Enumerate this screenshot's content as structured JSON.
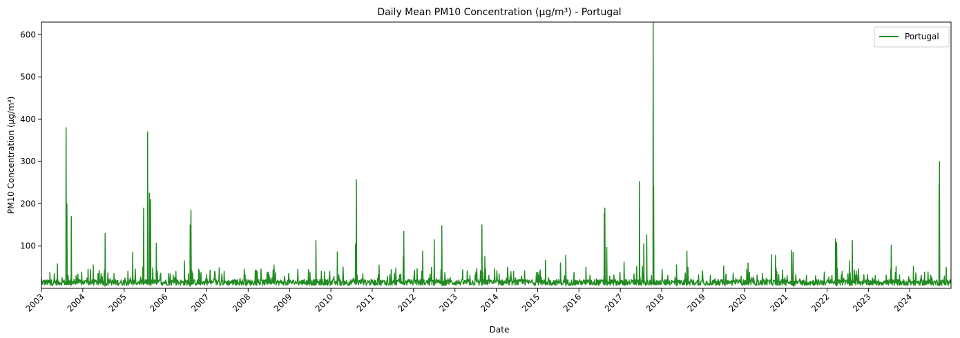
{
  "chart_data": {
    "type": "line",
    "title": "Daily Mean PM10 Concentration (µg/m³) - Portugal",
    "xlabel": "Date",
    "ylabel": "PM10 Concentration (µg/m³)",
    "xlim": [
      "2003-01-01",
      "2024-12-31"
    ],
    "ylim": [
      0,
      630
    ],
    "x_ticks": [
      "2003",
      "2004",
      "2005",
      "2006",
      "2007",
      "2008",
      "2009",
      "2010",
      "2011",
      "2012",
      "2013",
      "2014",
      "2015",
      "2016",
      "2017",
      "2018",
      "2019",
      "2020",
      "2021",
      "2022",
      "2023",
      "2024"
    ],
    "y_ticks": [
      100,
      200,
      300,
      400,
      500,
      600
    ],
    "grid": false,
    "legend": {
      "position": "top-right",
      "entries": [
        "Portugal"
      ]
    },
    "series": [
      {
        "name": "Portugal",
        "color": "#228B22",
        "baseline_range": [
          5,
          45
        ],
        "points": [
          [
            "2003-01-01",
            22
          ],
          [
            "2003-03-15",
            35
          ],
          [
            "2003-05-20",
            58
          ],
          [
            "2003-07-01",
            25
          ],
          [
            "2003-08-05",
            380
          ],
          [
            "2003-08-12",
            200
          ],
          [
            "2003-09-20",
            170
          ],
          [
            "2003-11-01",
            30
          ],
          [
            "2004-02-15",
            45
          ],
          [
            "2004-04-01",
            55
          ],
          [
            "2004-07-15",
            130
          ],
          [
            "2004-10-01",
            35
          ],
          [
            "2005-02-01",
            40
          ],
          [
            "2005-03-15",
            85
          ],
          [
            "2005-06-20",
            190
          ],
          [
            "2005-07-25",
            370
          ],
          [
            "2005-08-10",
            225
          ],
          [
            "2005-08-20",
            210
          ],
          [
            "2005-10-10",
            107
          ],
          [
            "2006-04-01",
            40
          ],
          [
            "2006-06-15",
            65
          ],
          [
            "2006-08-05",
            150
          ],
          [
            "2006-08-12",
            185
          ],
          [
            "2006-10-20",
            45
          ],
          [
            "2007-06-01",
            40
          ],
          [
            "2008-08-15",
            55
          ],
          [
            "2009-08-20",
            113
          ],
          [
            "2010-02-25",
            86
          ],
          [
            "2010-08-05",
            105
          ],
          [
            "2010-08-12",
            257
          ],
          [
            "2011-03-01",
            55
          ],
          [
            "2011-09-30",
            75
          ],
          [
            "2011-10-05",
            135
          ],
          [
            "2012-03-20",
            88
          ],
          [
            "2012-06-30",
            115
          ],
          [
            "2012-09-05",
            148
          ],
          [
            "2013-08-25",
            150
          ],
          [
            "2013-09-20",
            75
          ],
          [
            "2014-06-01",
            40
          ],
          [
            "2015-03-10",
            66
          ],
          [
            "2015-07-20",
            60
          ],
          [
            "2015-09-05",
            78
          ],
          [
            "2016-03-01",
            50
          ],
          [
            "2016-08-10",
            178
          ],
          [
            "2016-08-15",
            190
          ],
          [
            "2016-09-01",
            97
          ],
          [
            "2017-02-01",
            62
          ],
          [
            "2017-06-17",
            253
          ],
          [
            "2017-07-25",
            105
          ],
          [
            "2017-08-20",
            127
          ],
          [
            "2017-10-16",
            630
          ],
          [
            "2017-10-20",
            242
          ],
          [
            "2018-05-10",
            55
          ],
          [
            "2018-08-10",
            88
          ],
          [
            "2019-07-01",
            53
          ],
          [
            "2020-02-01",
            60
          ],
          [
            "2020-08-25",
            80
          ],
          [
            "2020-10-01",
            78
          ],
          [
            "2021-02-20",
            90
          ],
          [
            "2021-03-05",
            85
          ],
          [
            "2022-03-15",
            117
          ],
          [
            "2022-03-25",
            108
          ],
          [
            "2022-07-15",
            65
          ],
          [
            "2022-08-10",
            113
          ],
          [
            "2023-07-20",
            102
          ],
          [
            "2024-02-01",
            52
          ],
          [
            "2024-09-15",
            245
          ],
          [
            "2024-09-18",
            300
          ],
          [
            "2024-12-31",
            25
          ]
        ]
      }
    ]
  }
}
